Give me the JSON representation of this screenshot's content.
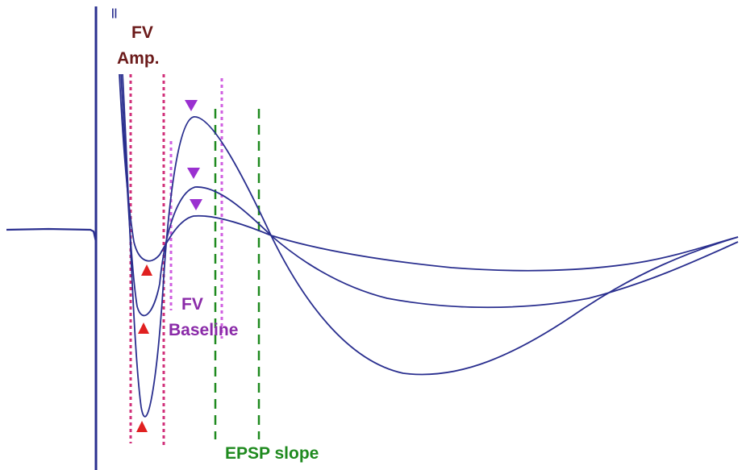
{
  "labels": {
    "fv_amp_line1": "FV",
    "fv_amp_line2": "Amp.",
    "fv_baseline_line1": "FV",
    "fv_baseline_line2": "Baseline",
    "epsp_slope": "EPSP slope",
    "top_marks": "||"
  },
  "colors": {
    "trace": "#2a2f8f",
    "fv_amp_text": "#6b1a1a",
    "fv_amp_lines": "#d1307a",
    "fv_baseline_text": "#8a2aa8",
    "fv_baseline_lines": "#d060e0",
    "epsp_text": "#1f8a1f",
    "epsp_lines": "#1f8a1f",
    "trough_marker": "#e02020",
    "peak_marker": "#9a30d0",
    "background": "#ffffff"
  },
  "markers": {
    "trough_marker": "red-up-triangle",
    "peak_marker": "purple-down-triangle"
  }
}
